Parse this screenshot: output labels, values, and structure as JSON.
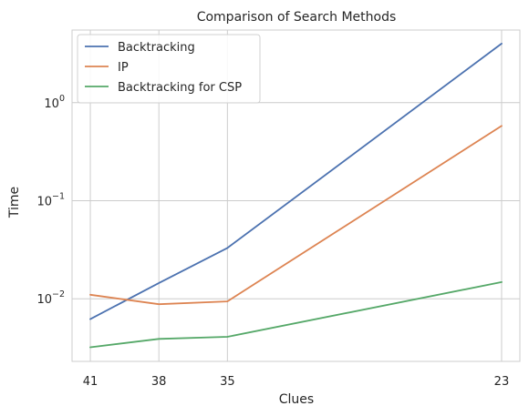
{
  "chart_data": {
    "type": "line",
    "title": "Comparison of Search Methods",
    "xlabel": "Clues",
    "ylabel": "Time",
    "x": [
      41,
      38,
      35,
      23
    ],
    "xlim": [
      41.8,
      22.2
    ],
    "x_ticks": [
      41,
      38,
      35,
      23
    ],
    "yscale": "log",
    "ylim": [
      0.0023,
      5.5
    ],
    "y_ticks": [
      {
        "value": 0.01,
        "base": "10",
        "exp": "−2"
      },
      {
        "value": 0.1,
        "base": "10",
        "exp": "−1"
      },
      {
        "value": 1,
        "base": "10",
        "exp": "0"
      }
    ],
    "grid": true,
    "legend_position": "upper-left",
    "series": [
      {
        "name": "Backtracking",
        "color": "#4c72b0",
        "values": [
          0.0062,
          0.0145,
          0.033,
          4.0
        ]
      },
      {
        "name": "IP",
        "color": "#dd8452",
        "values": [
          0.011,
          0.0088,
          0.0094,
          0.58
        ]
      },
      {
        "name": "Backtracking for CSP",
        "color": "#55a868",
        "values": [
          0.0032,
          0.0039,
          0.0041,
          0.0148
        ]
      }
    ]
  }
}
